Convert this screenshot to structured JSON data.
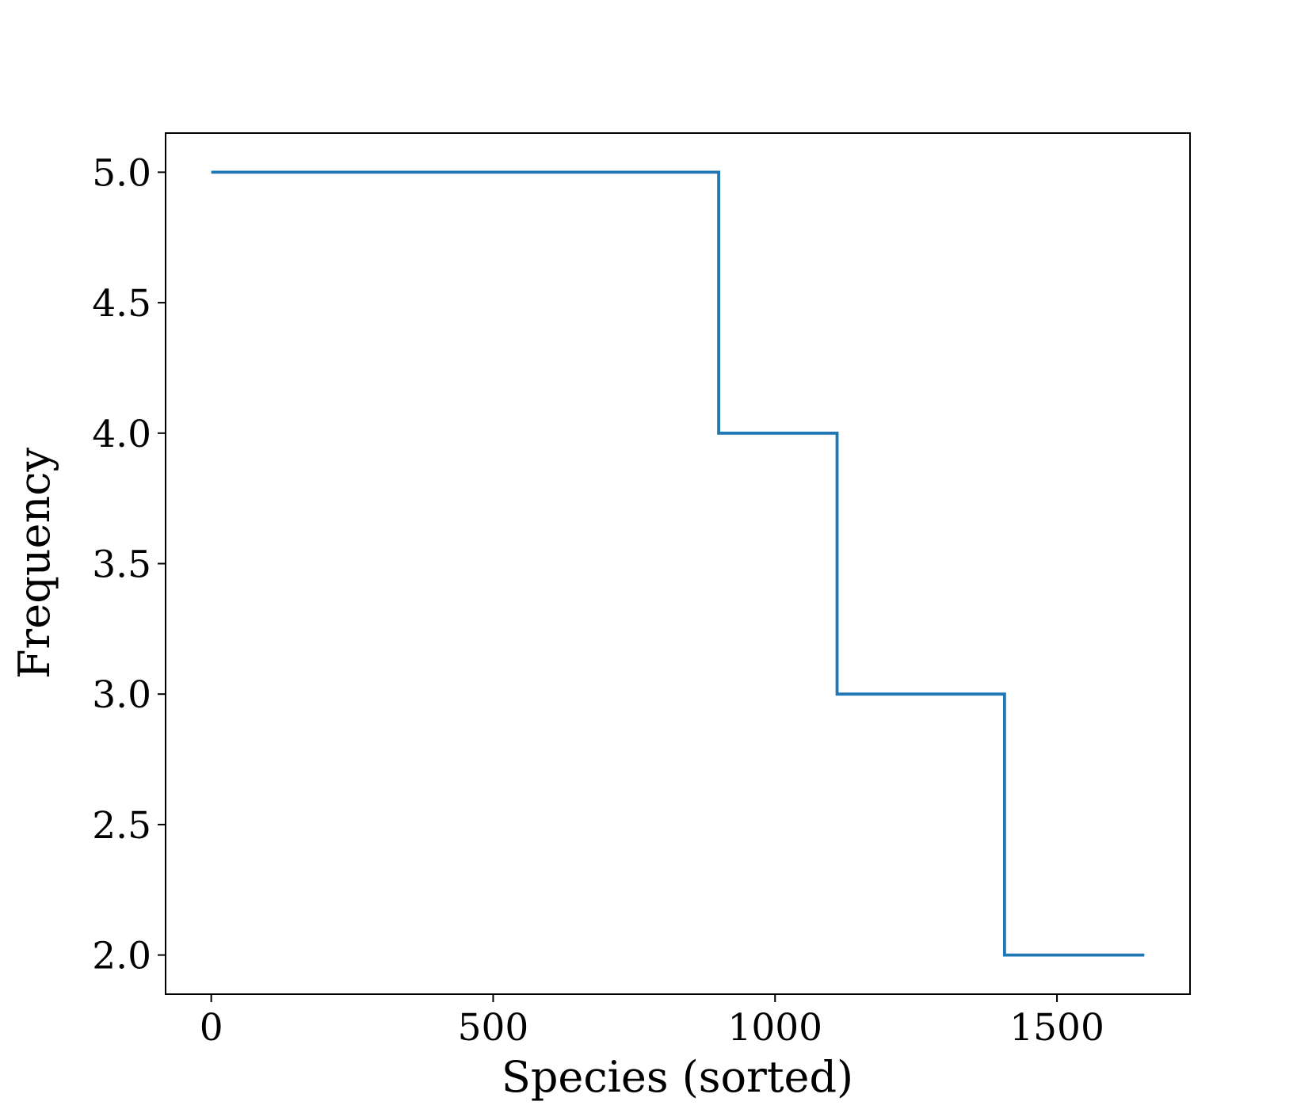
{
  "chart_data": {
    "type": "line",
    "x_label": "Species (sorted)",
    "y_label": "Frequency",
    "series": [
      {
        "color": "#1f77b4",
        "x": [
          0,
          900,
          900,
          1110,
          1110,
          1407,
          1407,
          1655
        ],
        "values": [
          5,
          5,
          4,
          4,
          3,
          3,
          2,
          2
        ]
      }
    ],
    "xlim": [
      -81,
      1736
    ],
    "ylim": [
      1.85,
      5.15
    ],
    "xticks": [
      0,
      500,
      1000,
      1500
    ],
    "yticks": [
      {
        "value": 2,
        "label": "2.0"
      },
      {
        "value": 2.5,
        "label": "2.5"
      },
      {
        "value": 3,
        "label": "3.0"
      },
      {
        "value": 3.5,
        "label": "3.5"
      },
      {
        "value": 4,
        "label": "4.0"
      },
      {
        "value": 4.5,
        "label": "4.5"
      },
      {
        "value": 5,
        "label": "5.0"
      }
    ]
  }
}
